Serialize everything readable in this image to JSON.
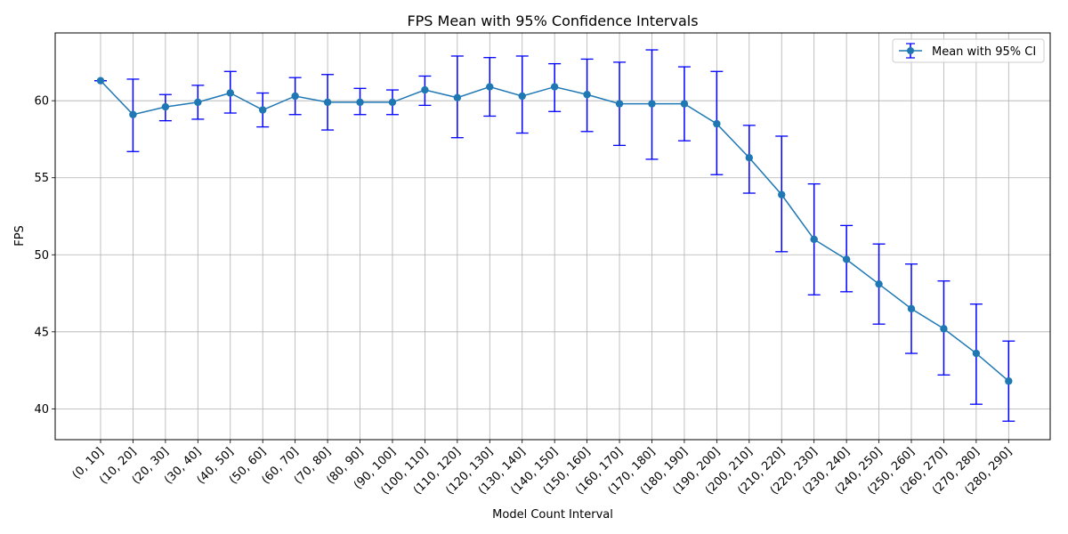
{
  "chart_data": {
    "type": "line",
    "title": "FPS Mean with 95% Confidence Intervals",
    "xlabel": "Model Count Interval",
    "ylabel": "FPS",
    "ylim": [
      38,
      64.4
    ],
    "yticks": [
      40,
      45,
      50,
      55,
      60
    ],
    "grid": true,
    "legend_position": "top-right",
    "categories": [
      "(0, 10]",
      "(10, 20]",
      "(20, 30]",
      "(30, 40]",
      "(40, 50]",
      "(50, 60]",
      "(60, 70]",
      "(70, 80]",
      "(80, 90]",
      "(90, 100]",
      "(100, 110]",
      "(110, 120]",
      "(120, 130]",
      "(130, 140]",
      "(140, 150]",
      "(150, 160]",
      "(160, 170]",
      "(170, 180]",
      "(180, 190]",
      "(190, 200]",
      "(200, 210]",
      "(210, 220]",
      "(220, 230]",
      "(230, 240]",
      "(240, 250]",
      "(250, 260]",
      "(260, 270]",
      "(270, 280]",
      "(280, 290]"
    ],
    "series": [
      {
        "name": "Mean with 95% CI",
        "values": [
          61.3,
          59.1,
          59.6,
          59.9,
          60.5,
          59.4,
          60.3,
          59.9,
          59.9,
          59.9,
          60.7,
          60.2,
          60.9,
          60.3,
          60.9,
          60.4,
          59.8,
          59.8,
          59.8,
          58.5,
          56.3,
          53.9,
          51.0,
          49.7,
          48.1,
          46.5,
          45.2,
          43.6,
          41.8
        ],
        "ci_lower": [
          61.3,
          56.7,
          58.7,
          58.8,
          59.2,
          58.3,
          59.1,
          58.1,
          59.1,
          59.1,
          59.7,
          57.6,
          59.0,
          57.9,
          59.3,
          58.0,
          57.1,
          56.2,
          57.4,
          55.2,
          54.0,
          50.2,
          47.4,
          47.6,
          45.5,
          43.6,
          42.2,
          40.3,
          39.2
        ],
        "ci_upper": [
          61.3,
          61.4,
          60.4,
          61.0,
          61.9,
          60.5,
          61.5,
          61.7,
          60.8,
          60.7,
          61.6,
          62.9,
          62.8,
          62.9,
          62.4,
          62.7,
          62.5,
          63.3,
          62.2,
          61.9,
          58.4,
          57.7,
          54.6,
          51.9,
          50.7,
          49.4,
          48.3,
          46.8,
          44.4
        ]
      }
    ],
    "colors": {
      "line": "#1f77b4",
      "errorbar": "#0000ff",
      "grid": "#b0b0b0"
    }
  }
}
